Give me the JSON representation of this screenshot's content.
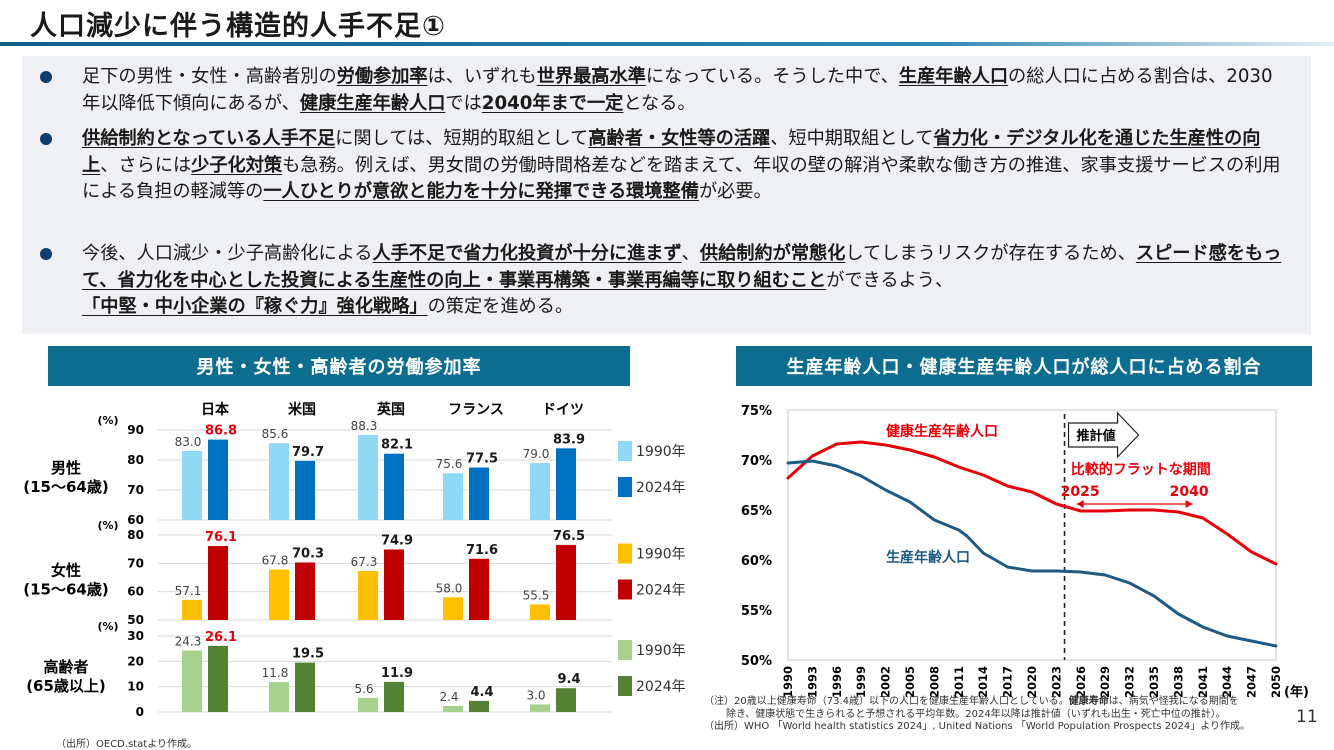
{
  "title": "人口減少に伴う構造的人手不足①",
  "bullets": [
    [
      {
        "t": "足下の男性・女性・高齢者別の"
      },
      {
        "t": "労働参加率",
        "u": true
      },
      {
        "t": "は、いずれも"
      },
      {
        "t": "世界最高水準",
        "u": true
      },
      {
        "t": "になっている。そうした中で、"
      },
      {
        "t": "生産年齢人口",
        "u": true
      },
      {
        "t": "の総人口に占める割合は、2030年以降低下傾向にあるが、"
      },
      {
        "t": "健康生産年齢人口",
        "u": true
      },
      {
        "t": "では"
      },
      {
        "t": "2040年まで一定",
        "u": true
      },
      {
        "t": "となる。"
      }
    ],
    [
      {
        "t": "供給制約となっている人手不足",
        "u": true
      },
      {
        "t": "に関しては、短期的取組として"
      },
      {
        "t": "高齢者・女性等の活躍",
        "u": true
      },
      {
        "t": "、短中期取組として"
      },
      {
        "t": "省力化・デジタル化を通じた生産性の向上",
        "u": true
      },
      {
        "t": "、さらには"
      },
      {
        "t": "少子化対策",
        "u": true
      },
      {
        "t": "も急務。例えば、男女間の労働時間格差などを踏まえて、年収の壁の解消や柔軟な働き方の推進、家事支援サービスの利用による負担の軽減等の"
      },
      {
        "t": "一人ひとりが意欲と能力を十分に発揮できる環境整備",
        "u": true
      },
      {
        "t": "が必要。"
      }
    ],
    [
      {
        "t": "今後、人口減少・少子高齢化による"
      },
      {
        "t": "人手不足で省力化投資が十分に進まず",
        "u": true
      },
      {
        "t": "、"
      },
      {
        "t": "供給制約が常態化",
        "u": true
      },
      {
        "t": "してしまうリスクが存在するため、"
      },
      {
        "t": "スピード感をもって、省力化を中心とした投資による生産性の向上・事業再構築・事業再編等に取り組むこと",
        "u": true
      },
      {
        "t": "ができるよう、"
      },
      {
        "t": "「中堅・中小企業の『稼ぐ力』強化戦略」",
        "u": true
      },
      {
        "t": "の策定を進める。"
      }
    ]
  ],
  "left_chart": {
    "header": "男性・女性・高齢者の労働参加率",
    "countries": [
      "日本",
      "米国",
      "英国",
      "フランス",
      "ドイツ"
    ],
    "unit_label": "(%)",
    "source": "（出所）OECD.statより作成。",
    "panels": [
      {
        "label_lines": [
          "男性",
          "(15～64歳)"
        ],
        "ymin": 60,
        "ymax": 90,
        "ticks": [
          60,
          70,
          80,
          90
        ],
        "legend": [
          "1990年",
          "2024年"
        ],
        "colors": [
          "#8fd8f6",
          "#0070c0"
        ],
        "v1990": [
          83.0,
          85.6,
          88.3,
          75.6,
          79.0
        ],
        "v2024": [
          86.8,
          79.7,
          82.1,
          77.5,
          83.9
        ],
        "labels1990": [
          "83.0",
          "85.6",
          "88.3",
          "75.6",
          "79.0"
        ],
        "labels2024": [
          "86.8",
          "79.7",
          "82.1",
          "77.5",
          "83.9"
        ],
        "highlight_index": 0
      },
      {
        "label_lines": [
          "女性",
          "(15～64歳)"
        ],
        "ymin": 50,
        "ymax": 80,
        "ticks": [
          50,
          60,
          70,
          80
        ],
        "legend": [
          "1990年",
          "2024年"
        ],
        "colors": [
          "#ffc000",
          "#c00000"
        ],
        "v1990": [
          57.1,
          67.8,
          67.3,
          58.0,
          55.5
        ],
        "v2024": [
          76.1,
          70.3,
          74.9,
          71.6,
          76.5
        ],
        "labels1990": [
          "57.1",
          "67.8",
          "67.3",
          "58.0",
          "55.5"
        ],
        "labels2024": [
          "76.1",
          "70.3",
          "74.9",
          "71.6",
          "76.5"
        ],
        "highlight_index": 0
      },
      {
        "label_lines": [
          "高齢者",
          "(65歳以上)"
        ],
        "ymin": 0,
        "ymax": 30,
        "ticks": [
          0,
          10,
          20,
          30
        ],
        "legend": [
          "1990年",
          "2024年"
        ],
        "colors": [
          "#a9d18e",
          "#548235"
        ],
        "v1990": [
          24.3,
          11.8,
          5.6,
          2.4,
          3.0
        ],
        "v2024": [
          26.1,
          19.5,
          11.9,
          4.4,
          9.4
        ],
        "labels1990": [
          "24.3",
          "11.8",
          "5.6",
          "2.4",
          "3.0"
        ],
        "labels2024": [
          "26.1",
          "19.5",
          "11.9",
          "4.4",
          "9.4"
        ],
        "highlight_index": 0
      }
    ],
    "highlight_color": "#e8000b"
  },
  "right_chart": {
    "header": "生産年齢人口・健康生産年齢人口が総人口に占める割合",
    "yticks": [
      "75%",
      "70%",
      "65%",
      "60%",
      "55%",
      "50%"
    ],
    "xticks": [
      "1990",
      "1993",
      "1996",
      "1999",
      "2002",
      "2005",
      "2008",
      "2011",
      "2014",
      "2017",
      "2020",
      "2023",
      "2026",
      "2029",
      "2032",
      "2035",
      "2038",
      "2041",
      "2044",
      "2047",
      "2050"
    ],
    "x_unit": "(年)",
    "projection_label": "推計値",
    "flat_label": "比較的フラットな期間",
    "flat_from": "2025",
    "flat_to": "2040"
  },
  "chart_data": [
    {
      "type": "bar",
      "title": "男性(15～64歳)",
      "categories": [
        "日本",
        "米国",
        "英国",
        "フランス",
        "ドイツ"
      ],
      "ylim": [
        60,
        90
      ],
      "ylabel": "(%)",
      "series": [
        {
          "name": "1990年",
          "values": [
            83.0,
            85.6,
            88.3,
            75.6,
            79.0
          ]
        },
        {
          "name": "2024年",
          "values": [
            86.8,
            79.7,
            82.1,
            77.5,
            83.9
          ]
        }
      ]
    },
    {
      "type": "bar",
      "title": "女性(15～64歳)",
      "categories": [
        "日本",
        "米国",
        "英国",
        "フランス",
        "ドイツ"
      ],
      "ylim": [
        50,
        80
      ],
      "ylabel": "(%)",
      "series": [
        {
          "name": "1990年",
          "values": [
            57.1,
            67.8,
            67.3,
            58.0,
            55.5
          ]
        },
        {
          "name": "2024年",
          "values": [
            76.1,
            70.3,
            74.9,
            71.6,
            76.5
          ]
        }
      ]
    },
    {
      "type": "bar",
      "title": "高齢者(65歳以上)",
      "categories": [
        "日本",
        "米国",
        "英国",
        "フランス",
        "ドイツ"
      ],
      "ylim": [
        0,
        30
      ],
      "ylabel": "(%)",
      "series": [
        {
          "name": "1990年",
          "values": [
            24.3,
            11.8,
            5.6,
            2.4,
            3.0
          ]
        },
        {
          "name": "2024年",
          "values": [
            26.1,
            19.5,
            11.9,
            4.4,
            9.4
          ]
        }
      ]
    },
    {
      "type": "line",
      "title": "生産年齢人口・健康生産年齢人口が総人口に占める割合",
      "xlabel": "(年)",
      "ylim": [
        50,
        75
      ],
      "projection_start": 2024,
      "series": [
        {
          "name": "健康生産年齢人口",
          "color": "#e8000b",
          "x": [
            1990,
            1993,
            1996,
            1999,
            2002,
            2005,
            2008,
            2011,
            2014,
            2017,
            2018,
            2020,
            2023,
            2026,
            2029,
            2032,
            2035,
            2038,
            2041,
            2044,
            2047,
            2050
          ],
          "y": [
            68.2,
            70.4,
            71.6,
            71.8,
            71.5,
            71.0,
            70.3,
            69.3,
            68.5,
            67.4,
            67.2,
            66.8,
            65.6,
            64.9,
            64.9,
            65.0,
            65.0,
            64.8,
            64.2,
            62.6,
            60.8,
            59.6
          ]
        },
        {
          "name": "生産年齢人口",
          "color": "#1e5a82",
          "x": [
            1990,
            1993,
            1996,
            1999,
            2002,
            2005,
            2008,
            2011,
            2012,
            2014,
            2017,
            2020,
            2023,
            2026,
            2029,
            2032,
            2035,
            2038,
            2041,
            2044,
            2047,
            2050
          ],
          "y": [
            69.7,
            69.9,
            69.4,
            68.4,
            67.0,
            65.8,
            64.0,
            63.0,
            62.4,
            60.7,
            59.3,
            58.9,
            58.9,
            58.8,
            58.5,
            57.7,
            56.4,
            54.6,
            53.3,
            52.4,
            51.9,
            51.4
          ]
        }
      ]
    }
  ],
  "note": {
    "line1_a": "（注）20歳以上健康寿命（73.4歳）以下の人口を健康生産年齢人口としている。",
    "line1_b": "健康寿命",
    "line1_c": "は、病気や怪我になる期間を",
    "line2": "除き、健康状態で生きられると予想される平均年数。2024年以降は推計値（いずれも出生・死亡中位の推計）。",
    "line3": "（出所）WHO 「World health statistics 2024」, United Nations 「World Population Prospects 2024」より作成。"
  },
  "page_number": "11"
}
